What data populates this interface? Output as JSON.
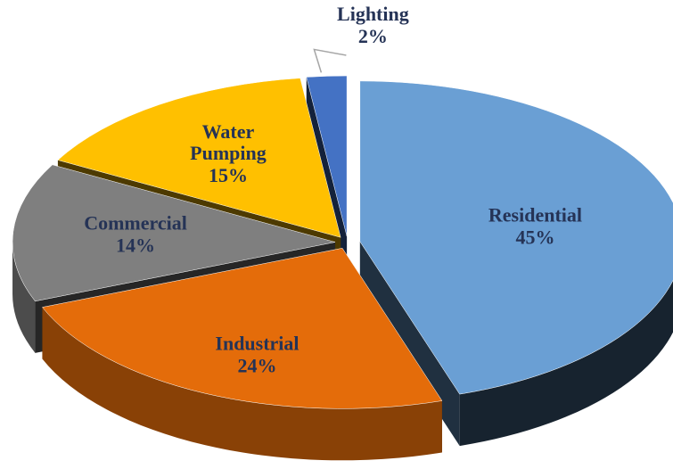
{
  "chart_data": {
    "type": "pie",
    "categories": [
      "Residential",
      "Industrial",
      "Commercial",
      "Water Pumping",
      "Street Lighting"
    ],
    "values": [
      45,
      24,
      14,
      15,
      2
    ],
    "value_labels": [
      "45%",
      "24%",
      "14%",
      "15%",
      "2%"
    ],
    "colors": [
      "#6a9fd4",
      "#e46c0a",
      "#7f7f7f",
      "#ffc000",
      "#4472c4"
    ]
  }
}
